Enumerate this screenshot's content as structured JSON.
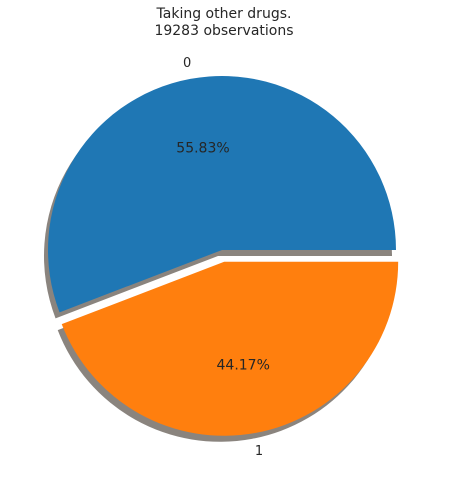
{
  "chart_data": {
    "type": "pie",
    "title": [
      "Taking other drugs.",
      "19283 observations"
    ],
    "labels": [
      "0",
      "1"
    ],
    "values": [
      55.83,
      44.17
    ],
    "value_labels": [
      "55.83%",
      "44.17%"
    ],
    "colors": [
      "#1f77b4",
      "#ff7f0e"
    ],
    "exploded": [
      false,
      true
    ],
    "shadow": true
  }
}
